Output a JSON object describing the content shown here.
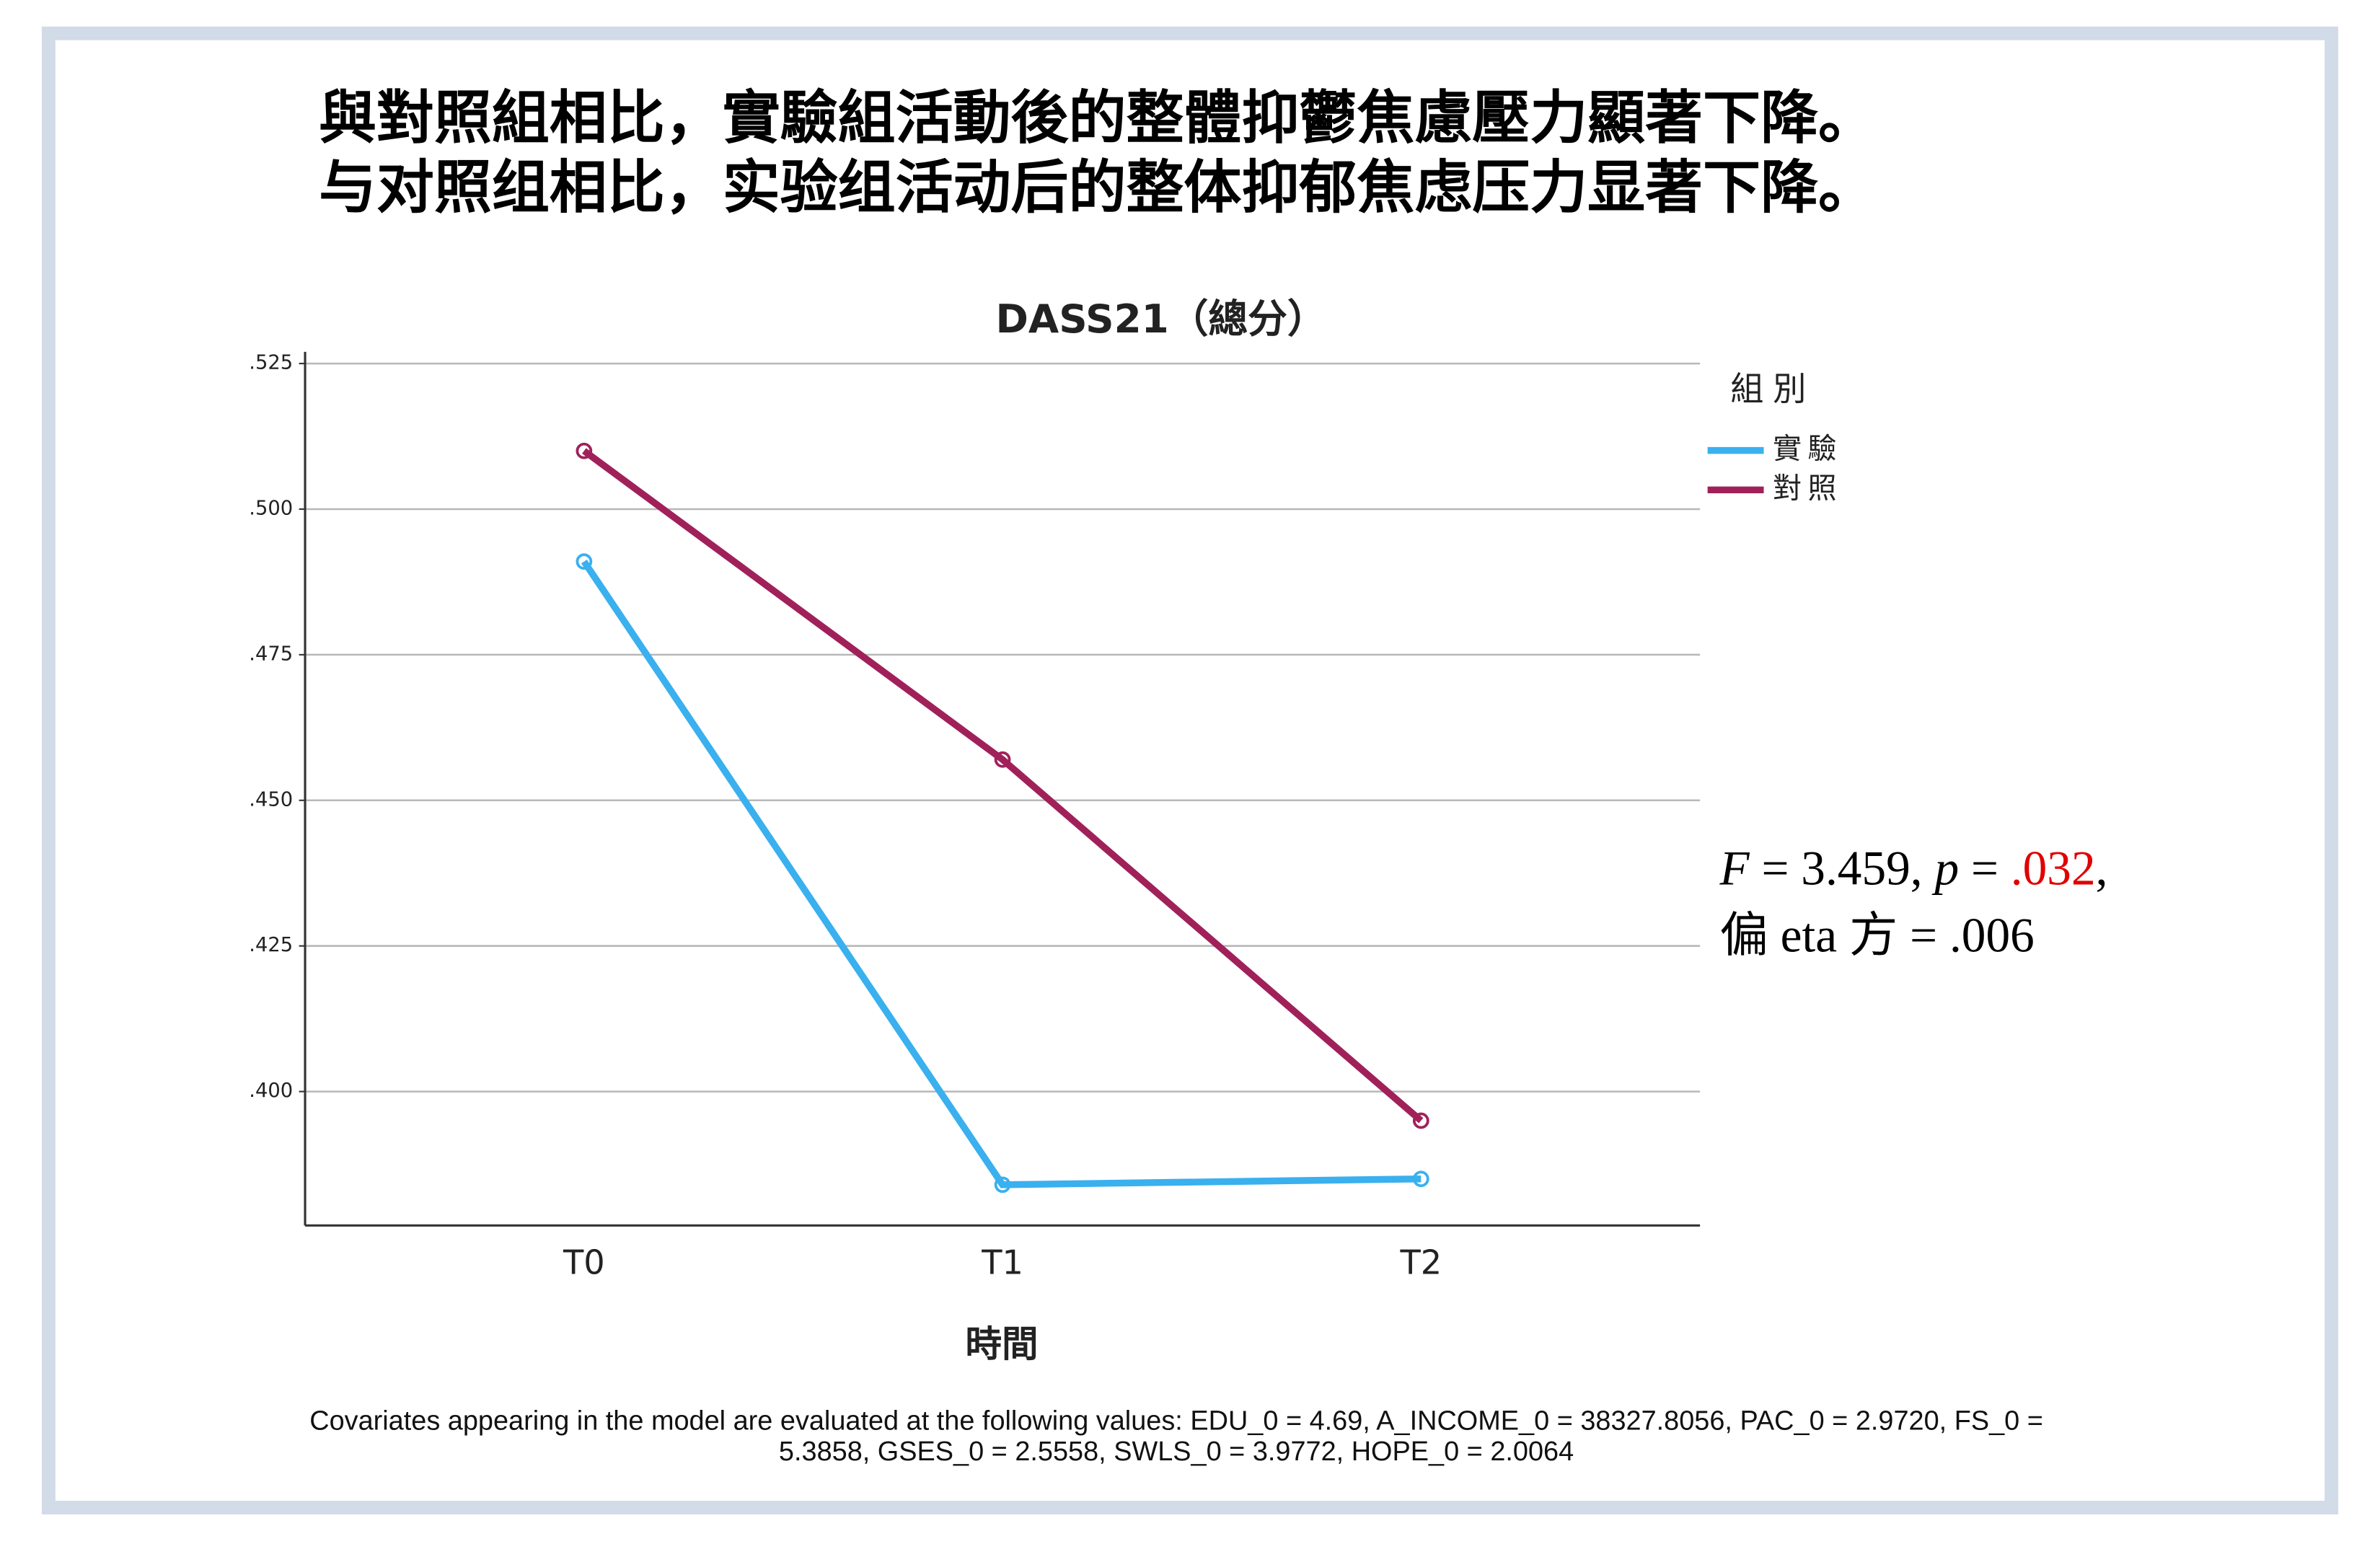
{
  "heading": [
    "與對照組相比，實驗組活動後的整體抑鬱焦慮壓力顯著下降。",
    "与对照组相比，实验组活动后的整体抑郁焦虑压力显著下降。"
  ],
  "chart_data": {
    "type": "line",
    "title": "DASS21（總分）",
    "x_label": "時間",
    "categories": [
      "T0",
      "T1",
      "T2"
    ],
    "series": [
      {
        "name": "實驗",
        "color": "#3ab0ee",
        "values": [
          0.491,
          0.384,
          0.385
        ]
      },
      {
        "name": "對照",
        "color": "#a0215a",
        "values": [
          0.51,
          0.457,
          0.395
        ]
      }
    ],
    "ylim": [
      0.377,
      0.527
    ],
    "yticks": [
      {
        "value": 0.4,
        "label": ".400"
      },
      {
        "value": 0.425,
        "label": ".425"
      },
      {
        "value": 0.45,
        "label": ".450"
      },
      {
        "value": 0.475,
        "label": ".475"
      },
      {
        "value": 0.5,
        "label": ".500"
      },
      {
        "value": 0.525,
        "label": ".525"
      }
    ],
    "grid": true,
    "legend_title": "組別",
    "legend_position": "right"
  },
  "annotation": {
    "line1": [
      "F",
      " = 3.459, ",
      "p",
      " = ",
      ".032",
      ","
    ],
    "line2": "偏 eta 方 = .006"
  },
  "footnote": [
    "Covariates appearing in the model are evaluated at the following values: EDU_0 = 4.69, A_INCOME_0 = 38327.8056, PAC_0 = 2.9720, FS_0 =",
    "5.3858, GSES_0 = 2.5558, SWLS_0 = 3.9772, HOPE_0 = 2.0064"
  ]
}
